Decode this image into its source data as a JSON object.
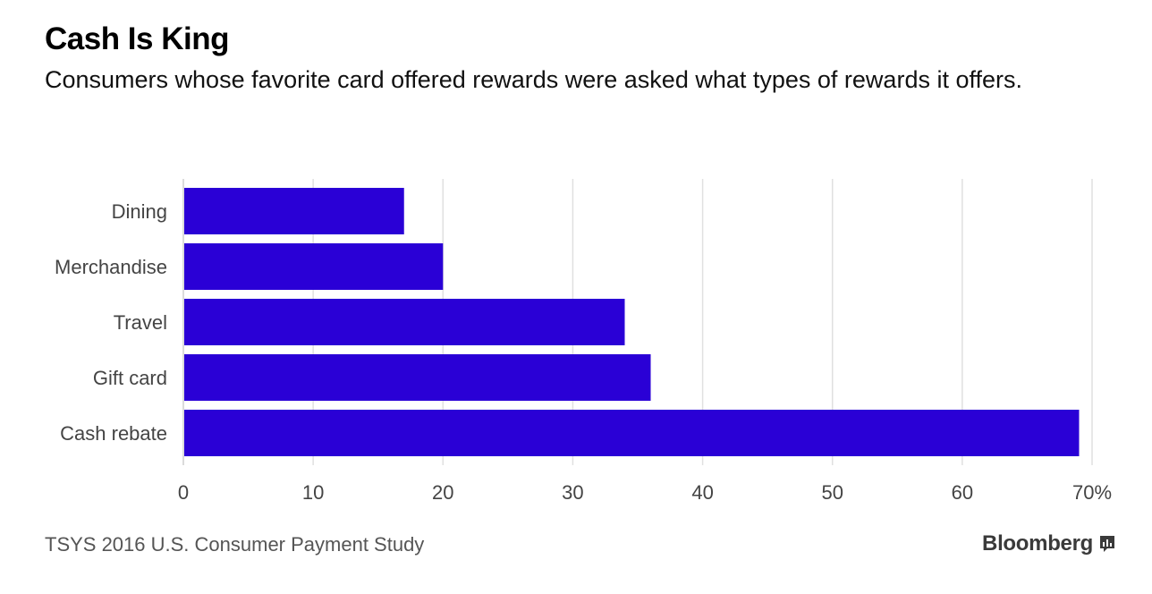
{
  "header": {
    "title": "Cash Is King",
    "subtitle": "Consumers whose favorite card offered rewards were asked what types of rewards it offers."
  },
  "footer": {
    "source": "TSYS 2016 U.S. Consumer Payment Study",
    "brand": "Bloomberg",
    "brand_icon": "bloomberg-chart-icon"
  },
  "colors": {
    "bar": "#2a00d6",
    "grid": "#e0e0e0",
    "axis_text": "#444444"
  },
  "chart_data": {
    "type": "bar",
    "orientation": "horizontal",
    "title": "Cash Is King",
    "subtitle": "Consumers whose favorite card offered rewards were asked what types of rewards it offers.",
    "categories": [
      "Dining",
      "Merchandise",
      "Travel",
      "Gift card",
      "Cash rebate"
    ],
    "values": [
      17,
      20,
      34,
      36,
      69
    ],
    "xlim": [
      0,
      70
    ],
    "xticks": [
      "0",
      "10",
      "20",
      "30",
      "40",
      "50",
      "60",
      "70%"
    ],
    "xlabel": "",
    "ylabel": "",
    "grid": true
  }
}
